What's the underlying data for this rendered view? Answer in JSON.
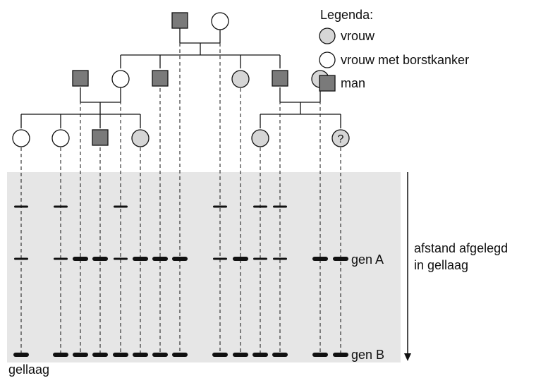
{
  "legend": {
    "title": "Legenda:",
    "items": [
      {
        "symbol": "female",
        "label": "vrouw"
      },
      {
        "symbol": "female-cancer",
        "label": "vrouw met borstkanker"
      },
      {
        "symbol": "male",
        "label": "man"
      }
    ]
  },
  "colors": {
    "male_fill": "#7a7a7a",
    "female_fill": "#d6d6d6",
    "cancer_fill": "#ffffff",
    "gel": "#e6e6e6",
    "stroke": "#111111"
  },
  "unknown_mark": "?",
  "pedigree": {
    "generation_1": [
      {
        "sex": "male",
        "phenotype": "male"
      },
      {
        "sex": "female",
        "phenotype": "female-cancer"
      }
    ],
    "generation_2": [
      {
        "sex": "male",
        "phenotype": "male"
      },
      {
        "sex": "female",
        "phenotype": "female-cancer"
      },
      {
        "sex": "male",
        "phenotype": "male"
      },
      {
        "sex": "female",
        "phenotype": "female"
      },
      {
        "sex": "male",
        "phenotype": "male"
      },
      {
        "sex": "female",
        "phenotype": "female"
      }
    ],
    "generation_3": [
      {
        "sex": "female",
        "phenotype": "female-cancer"
      },
      {
        "sex": "female",
        "phenotype": "female-cancer"
      },
      {
        "sex": "male",
        "phenotype": "male"
      },
      {
        "sex": "female",
        "phenotype": "female"
      },
      {
        "sex": "female",
        "phenotype": "female"
      },
      {
        "sex": "female",
        "phenotype": "female",
        "unknown": true
      }
    ]
  },
  "gel": {
    "label": "gellaag",
    "arrow_label_line1": "afstand afgelegd",
    "arrow_label_line2": "in gellaag",
    "gene_a_label": "gen A",
    "gene_b_label": "gen B"
  }
}
